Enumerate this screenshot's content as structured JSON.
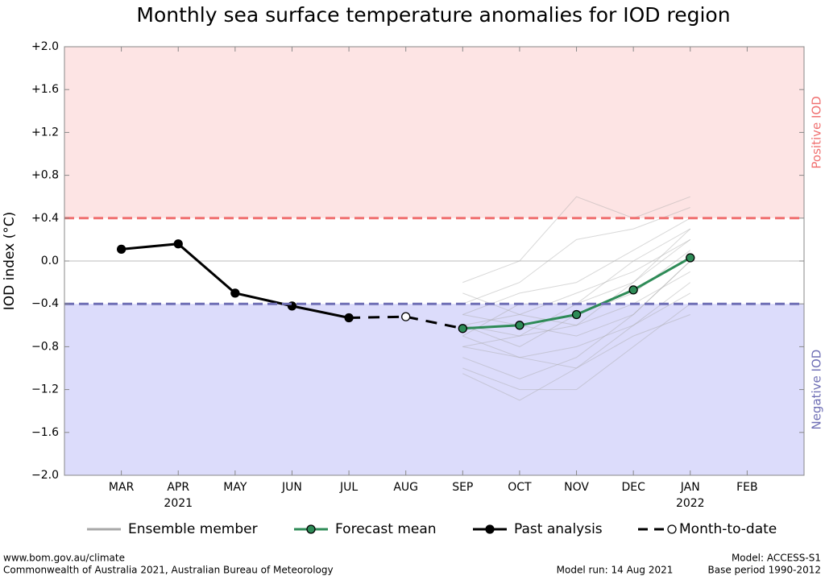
{
  "chart_data": {
    "type": "line",
    "title": "Monthly sea surface temperature anomalies for IOD region",
    "y_label": "IOD index (°C)",
    "categories": [
      "MAR",
      "APR",
      "MAY",
      "JUN",
      "JUL",
      "AUG",
      "SEP",
      "OCT",
      "NOV",
      "DEC",
      "JAN",
      "FEB"
    ],
    "category_sublabels": [
      null,
      "2021",
      null,
      null,
      null,
      null,
      null,
      null,
      null,
      null,
      "2022",
      null
    ],
    "ylim": [
      -2.0,
      2.0
    ],
    "yticks": [
      {
        "value": 2.0,
        "label": "+2.0"
      },
      {
        "value": 1.6,
        "label": "+1.6"
      },
      {
        "value": 1.2,
        "label": "+1.2"
      },
      {
        "value": 0.8,
        "label": "+0.8"
      },
      {
        "value": 0.4,
        "label": "+0.4"
      },
      {
        "value": 0.0,
        "label": "0.0"
      },
      {
        "value": -0.4,
        "label": "−0.4"
      },
      {
        "value": -0.8,
        "label": "−0.8"
      },
      {
        "value": -1.2,
        "label": "−1.2"
      },
      {
        "value": -1.6,
        "label": "−1.6"
      },
      {
        "value": -2.0,
        "label": "−2.0"
      }
    ],
    "thresholds": [
      {
        "value": 0.4,
        "label": "Positive IOD",
        "color": "#f07070",
        "fill": "#fde4e4"
      },
      {
        "value": -0.4,
        "label": "Negative IOD",
        "color": "#6f6fb5",
        "fill": "#dcdcfb"
      }
    ],
    "ensemble": {
      "name": "Ensemble member",
      "color": "#a8a8a8",
      "members": [
        [
          null,
          null,
          null,
          null,
          null,
          null,
          -0.3,
          -0.5,
          -0.6,
          -0.2,
          0.3
        ],
        [
          null,
          null,
          null,
          null,
          null,
          null,
          -0.7,
          -0.9,
          -1.0,
          -0.6,
          -0.2
        ],
        [
          null,
          null,
          null,
          null,
          null,
          null,
          -0.5,
          -0.3,
          -0.2,
          0.1,
          0.4
        ],
        [
          null,
          null,
          null,
          null,
          null,
          null,
          -0.9,
          -1.1,
          -0.9,
          -0.5,
          0.0
        ],
        [
          null,
          null,
          null,
          null,
          null,
          null,
          -0.6,
          -0.5,
          -0.3,
          -0.1,
          0.2
        ],
        [
          null,
          null,
          null,
          null,
          null,
          null,
          -0.8,
          -0.7,
          -0.6,
          -0.4,
          -0.1
        ],
        [
          null,
          null,
          null,
          null,
          null,
          null,
          -0.4,
          -0.2,
          0.2,
          0.3,
          0.5
        ],
        [
          null,
          null,
          null,
          null,
          null,
          null,
          -1.0,
          -1.2,
          -1.2,
          -0.8,
          -0.4
        ],
        [
          null,
          null,
          null,
          null,
          null,
          null,
          -0.6,
          -0.8,
          -0.5,
          -0.3,
          0.1
        ],
        [
          null,
          null,
          null,
          null,
          null,
          null,
          -0.5,
          -0.6,
          -0.7,
          -0.5,
          0.0
        ],
        [
          null,
          null,
          null,
          null,
          null,
          null,
          -0.7,
          -0.4,
          -0.4,
          0.0,
          0.3
        ],
        [
          null,
          null,
          null,
          null,
          null,
          null,
          -0.2,
          0.0,
          0.6,
          0.4,
          0.6
        ],
        [
          null,
          null,
          null,
          null,
          null,
          null,
          -0.8,
          -0.9,
          -0.8,
          -0.6,
          -0.3
        ],
        [
          null,
          null,
          null,
          null,
          null,
          null,
          -0.6,
          -0.7,
          -0.4,
          -0.2,
          0.2
        ],
        [
          null,
          null,
          null,
          null,
          null,
          null,
          -1.05,
          -1.3,
          -1.0,
          -0.7,
          -0.5
        ]
      ]
    },
    "series": [
      {
        "name": "Forecast mean",
        "color": "#2e8b57",
        "marker": "filled",
        "values": [
          null,
          null,
          null,
          null,
          null,
          null,
          -0.63,
          -0.6,
          -0.5,
          -0.27,
          0.03,
          null
        ]
      },
      {
        "name": "Past analysis",
        "color": "#000000",
        "marker": "filled",
        "values": [
          0.11,
          0.16,
          -0.3,
          -0.42,
          -0.53,
          null,
          null,
          null,
          null,
          null,
          null,
          null
        ]
      },
      {
        "name": "Month-to-date",
        "color": "#000000",
        "marker": "hollow",
        "dashed": true,
        "values": [
          null,
          null,
          null,
          null,
          null,
          -0.52,
          null,
          null,
          null,
          null,
          null,
          null
        ]
      }
    ],
    "footer": {
      "left": [
        "www.bom.gov.au/climate",
        "Commonwealth of Australia 2021, Australian Bureau of Meteorology"
      ],
      "center": "Model run: 14 Aug 2021",
      "right": [
        "Model: ACCESS-S1",
        "Base period 1990-2012"
      ]
    }
  }
}
